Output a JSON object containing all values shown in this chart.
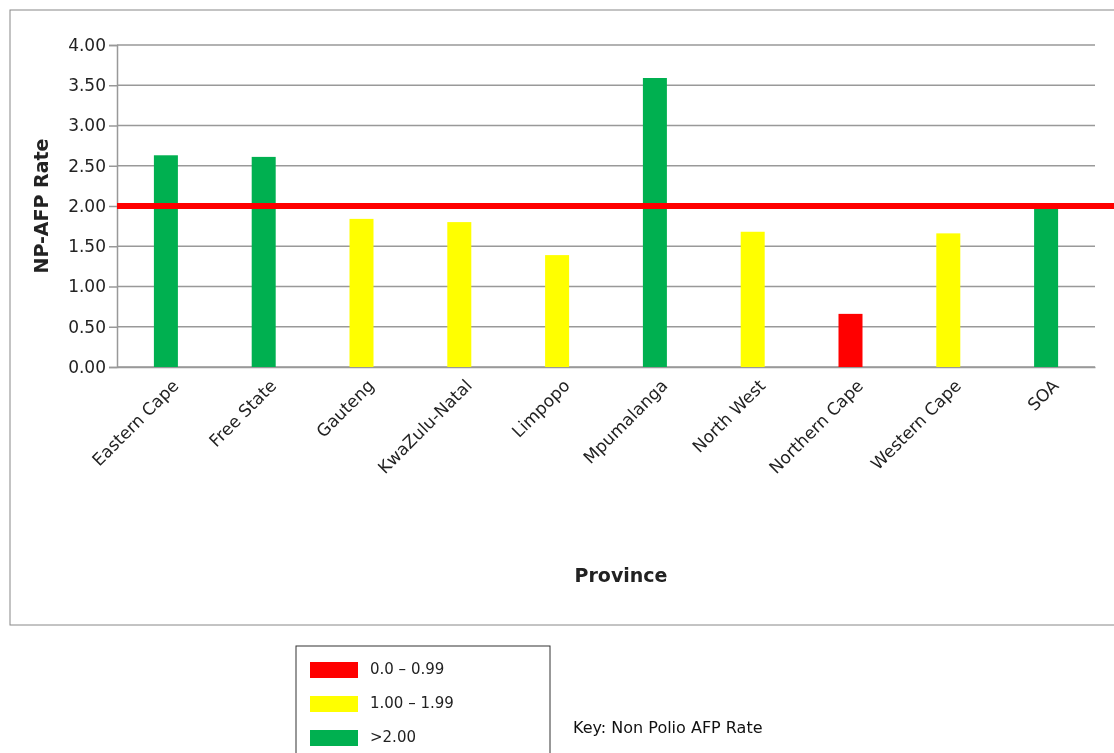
{
  "chart_data": {
    "type": "bar",
    "xlabel": "Province",
    "ylabel": "NP-AFP Rate",
    "categories": [
      "Eastern Cape",
      "Free State",
      "Gauteng",
      "KwaZulu-Natal",
      "Limpopo",
      "Mpumalanga",
      "North West",
      "Northern Cape",
      "Western Cape",
      "SOA"
    ],
    "series": [
      {
        "name": "0.0 – 0.99",
        "color": "#ff0000",
        "values": [
          null,
          null,
          null,
          null,
          null,
          null,
          null,
          0.66,
          null,
          null
        ]
      },
      {
        "name": "1.00 – 1.99",
        "color": "#ffff00",
        "values": [
          null,
          null,
          1.84,
          1.8,
          1.39,
          null,
          1.68,
          null,
          1.66,
          null
        ]
      },
      {
        "name": ">2.00",
        "color": "#00b050",
        "values": [
          2.63,
          2.61,
          null,
          null,
          null,
          3.59,
          null,
          null,
          null,
          1.97
        ]
      }
    ],
    "ylim": [
      0,
      4
    ],
    "yticks": [
      {
        "value": 0,
        "label": "0.00"
      },
      {
        "value": 0.5,
        "label": "0.50"
      },
      {
        "value": 1,
        "label": "1.00"
      },
      {
        "value": 1.5,
        "label": "1.50"
      },
      {
        "value": 2,
        "label": "2.00"
      },
      {
        "value": 2.5,
        "label": "2.50"
      },
      {
        "value": 3,
        "label": "3.00"
      },
      {
        "value": 3.5,
        "label": "3.50"
      },
      {
        "value": 4,
        "label": "4.00"
      }
    ],
    "grid": "y",
    "ref_lines": [
      {
        "axis": "y",
        "value": 2,
        "color": "#ff0000"
      }
    ],
    "legend": "bottom",
    "legend_title": "Key: Non Polio AFP Rate"
  }
}
